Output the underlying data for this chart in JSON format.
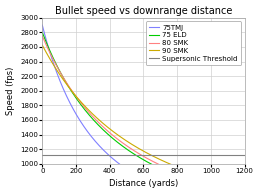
{
  "title": "Bullet speed vs downrange distance",
  "xlabel": "Distance (yards)",
  "ylabel": "Speed (fps)",
  "xlim": [
    0,
    1200
  ],
  "ylim": [
    1000,
    3000
  ],
  "xticks": [
    0,
    200,
    400,
    600,
    800,
    1000,
    1200
  ],
  "yticks": [
    1000,
    1200,
    1400,
    1600,
    1800,
    2000,
    2200,
    2400,
    2600,
    2800,
    3000
  ],
  "supersonic_threshold": 1125,
  "lines": [
    {
      "label": "75TMJ",
      "color": "#8080ff",
      "v0": 2900,
      "bc": 0.27
    },
    {
      "label": "75 ELD",
      "color": "#00cc00",
      "v0": 2800,
      "bc": 0.39
    },
    {
      "label": "80 SMK",
      "color": "#ff8080",
      "v0": 2750,
      "bc": 0.42
    },
    {
      "label": "90 SMK",
      "color": "#ccaa00",
      "v0": 2625,
      "bc": 0.48
    }
  ],
  "background_color": "#ffffff",
  "grid_color": "#d0d0d0",
  "legend_fontsize": 5,
  "title_fontsize": 7,
  "axis_fontsize": 6,
  "tick_fontsize": 5,
  "figsize": [
    2.59,
    1.94
  ],
  "dpi": 100
}
